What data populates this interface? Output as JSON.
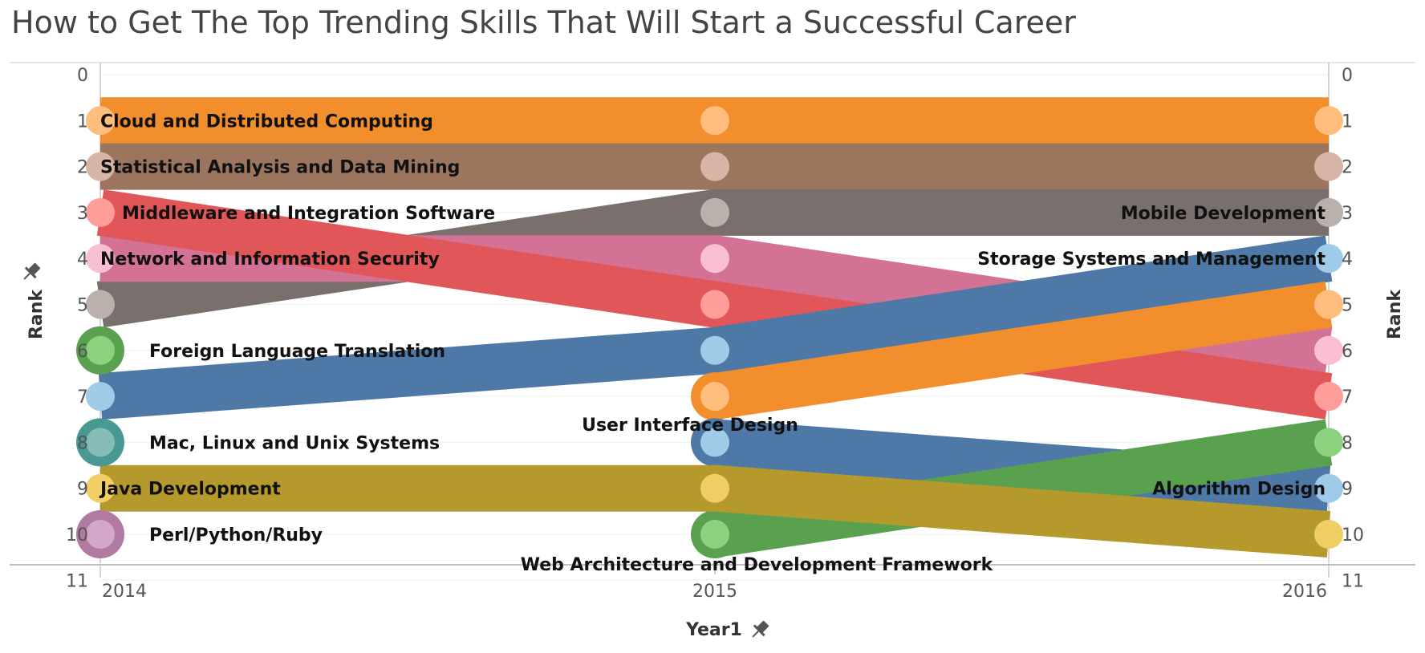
{
  "title": "How to Get The Top Trending Skills That Will Start a Successful Career",
  "chart_data": {
    "type": "line",
    "title": "How to Get The Top Trending Skills That Will Start a Successful Career",
    "xlabel": "Year1",
    "ylabel": "Rank",
    "ylabel_right": "Rank",
    "x": [
      "2014",
      "2015",
      "2016"
    ],
    "y_ticks": [
      0,
      1,
      2,
      3,
      4,
      5,
      6,
      7,
      8,
      9,
      10,
      11
    ],
    "ylim": [
      0,
      11
    ],
    "y_inverted": true,
    "series": [
      {
        "name": "Cloud and Distributed Computing",
        "color": "#F28E2B",
        "dot": "#FFBE7D",
        "ranks": [
          1,
          1,
          1
        ],
        "label_at": "2014"
      },
      {
        "name": "Statistical Analysis and Data Mining",
        "color": "#9C755F",
        "dot": "#D7B5A6",
        "ranks": [
          2,
          2,
          2
        ],
        "label_at": "2014"
      },
      {
        "name": "Mobile Development",
        "color": "#79706E",
        "dot": "#BAB0AC",
        "ranks": [
          5,
          3,
          3
        ],
        "label_at": "2016"
      },
      {
        "name": "Network and Information Security",
        "color": "#D37295",
        "dot": "#FABFD2",
        "ranks": [
          4,
          4,
          6
        ],
        "label_at": "2014"
      },
      {
        "name": "Middleware and Integration Software",
        "color": "#E15759",
        "dot": "#FF9D9A",
        "ranks": [
          3,
          5,
          7
        ],
        "label_at": "2014"
      },
      {
        "name": "Storage Systems and Management",
        "color": "#4E79A7",
        "dot": "#A0CBE8",
        "ranks": [
          7,
          6,
          4
        ],
        "label_at": "2016"
      },
      {
        "name": "User Interface Design",
        "color": "#F28E2B",
        "dot": "#FFBE7D",
        "ranks": [
          null,
          7,
          5
        ],
        "label_at": "2015"
      },
      {
        "name": "Algorithm Design",
        "color": "#4E79A7",
        "dot": "#A0CBE8",
        "ranks": [
          null,
          8,
          9
        ],
        "label_at": "2016"
      },
      {
        "name": "Web Architecture and Development Framework",
        "color": "#59A14F",
        "dot": "#8CD17D",
        "ranks": [
          null,
          10,
          8
        ],
        "label_at": "2015"
      },
      {
        "name": "Java Development",
        "color": "#B6992D",
        "dot": "#F1CE63",
        "ranks": [
          9,
          9,
          10
        ],
        "label_at": "2014"
      },
      {
        "name": "Foreign Language Translation",
        "color": "#59A14F",
        "dot": "#8CD17D",
        "ranks": [
          6,
          null,
          null
        ],
        "label_at": "2014"
      },
      {
        "name": "Mac, Linux and Unix Systems",
        "color": "#499894",
        "dot": "#86BCB6",
        "ranks": [
          8,
          null,
          null
        ],
        "label_at": "2014"
      },
      {
        "name": "Perl/Python/Ruby",
        "color": "#B07AA1",
        "dot": "#D4A6C8",
        "ranks": [
          10,
          null,
          null
        ],
        "label_at": "2014"
      }
    ]
  }
}
